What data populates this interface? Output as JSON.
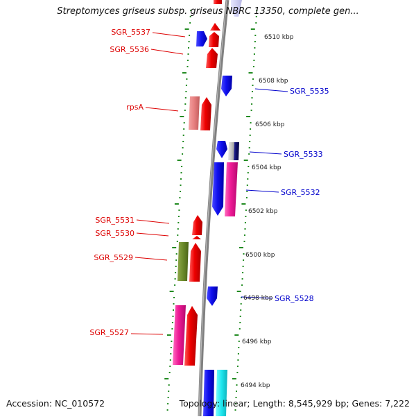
{
  "header": {
    "title": "Streptomyces griseus subsp. griseus NBRC 13350, complete gen..."
  },
  "footer": {
    "accession": "Accession: NC_010572",
    "topology": "Topology: linear; Length: 8,545,929 bp; Genes: 7,222"
  },
  "map": {
    "backbone_color": "#808080",
    "tick_color": "#228b22",
    "position_labels": [
      {
        "kbp": 6510,
        "text": "6510 kbp"
      },
      {
        "kbp": 6508,
        "text": "6508 kbp"
      },
      {
        "kbp": 6506,
        "text": "6506 kbp"
      },
      {
        "kbp": 6504,
        "text": "6504 kbp"
      },
      {
        "kbp": 6502,
        "text": "6502 kbp"
      },
      {
        "kbp": 6500,
        "text": "6500 kbp"
      },
      {
        "kbp": 6498,
        "text": "6498 kbp"
      },
      {
        "kbp": 6496,
        "text": "6496 kbp"
      },
      {
        "kbp": 6494,
        "text": "6494 kbp"
      }
    ],
    "gene_labels_left": [
      {
        "text": "SGR_5537",
        "color": "#dd0000"
      },
      {
        "text": "SGR_5536",
        "color": "#dd0000"
      },
      {
        "text": "rpsA",
        "color": "#dd0000"
      },
      {
        "text": "SGR_5531",
        "color": "#dd0000"
      },
      {
        "text": "SGR_5530",
        "color": "#dd0000"
      },
      {
        "text": "SGR_5529",
        "color": "#dd0000"
      },
      {
        "text": "SGR_5527",
        "color": "#dd0000"
      }
    ],
    "gene_labels_right": [
      {
        "text": "SGR_5535",
        "color": "#0000cc"
      },
      {
        "text": "SGR_5533",
        "color": "#0000cc"
      },
      {
        "text": "SGR_5532",
        "color": "#0000cc"
      },
      {
        "text": "SGR_5528",
        "color": "#0000cc"
      }
    ]
  }
}
